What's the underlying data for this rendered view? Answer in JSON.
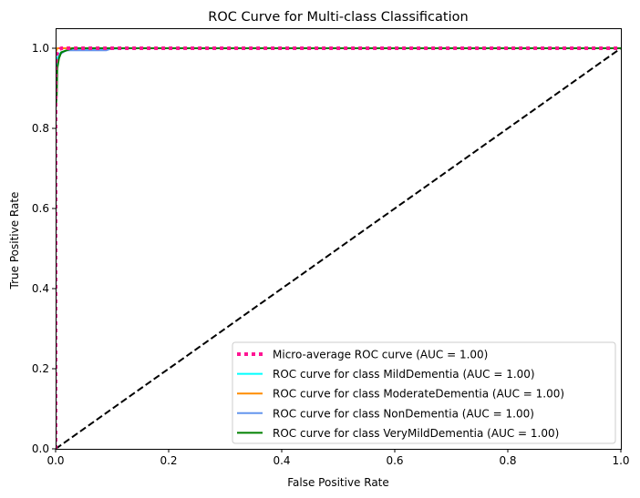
{
  "chart_data": {
    "type": "line",
    "title": "ROC Curve for Multi-class Classification",
    "xlabel": "False Positive Rate",
    "ylabel": "True Positive Rate",
    "xlim": [
      0.0,
      1.0
    ],
    "ylim": [
      0.0,
      1.05
    ],
    "x_ticks": [
      0.0,
      0.2,
      0.4,
      0.6,
      0.8,
      1.0
    ],
    "x_tick_labels": [
      "0.0",
      "0.2",
      "0.4",
      "0.6",
      "0.8",
      "1.0"
    ],
    "y_ticks": [
      0.0,
      0.2,
      0.4,
      0.6,
      0.8,
      1.0
    ],
    "y_tick_labels": [
      "0.0",
      "0.2",
      "0.4",
      "0.6",
      "0.8",
      "1.0"
    ],
    "grid": false,
    "legend_position": "bottom-right",
    "series": [
      {
        "name": "Micro-average ROC curve (AUC = 1.00)",
        "color": "#ff1493",
        "dash": "dotted",
        "x": [
          0.0,
          0.0,
          0.002,
          0.005,
          0.01,
          1.0
        ],
        "y": [
          0.0,
          0.96,
          0.985,
          0.995,
          1.0,
          1.0
        ]
      },
      {
        "name": "ROC curve for class MildDementia (AUC = 1.00)",
        "color": "#00ffff",
        "dash": "solid",
        "x": [
          0.0,
          0.0,
          0.003,
          0.006,
          0.01,
          0.02,
          0.04,
          0.08,
          0.13,
          1.0
        ],
        "y": [
          0.0,
          0.95,
          0.975,
          0.985,
          0.99,
          0.995,
          0.997,
          0.998,
          1.0,
          1.0
        ]
      },
      {
        "name": "ROC curve for class ModerateDementia (AUC = 1.00)",
        "color": "#ff8c00",
        "dash": "solid",
        "x": [
          0.0,
          0.0,
          0.003,
          1.0
        ],
        "y": [
          0.0,
          0.99,
          1.0,
          1.0
        ]
      },
      {
        "name": "ROC curve for class NonDementia (AUC = 1.00)",
        "color": "#6495ed",
        "dash": "solid",
        "x": [
          0.0,
          0.0,
          0.003,
          0.008,
          0.015,
          0.02,
          0.05,
          0.09,
          0.1,
          1.0
        ],
        "y": [
          0.0,
          0.94,
          0.97,
          0.985,
          0.992,
          0.995,
          0.995,
          0.995,
          1.0,
          1.0
        ]
      },
      {
        "name": "ROC curve for class VeryMildDementia (AUC = 1.00)",
        "color": "#008000",
        "dash": "solid",
        "x": [
          0.0,
          0.0,
          0.002,
          0.003,
          0.006,
          0.01,
          0.02,
          0.03,
          1.0
        ],
        "y": [
          0.0,
          0.85,
          0.88,
          0.95,
          0.975,
          0.99,
          0.995,
          1.0,
          1.0
        ]
      }
    ],
    "reference_line": {
      "color": "#000000",
      "dash": "dashed",
      "x": [
        0.0,
        1.0
      ],
      "y": [
        0.0,
        1.0
      ]
    }
  }
}
